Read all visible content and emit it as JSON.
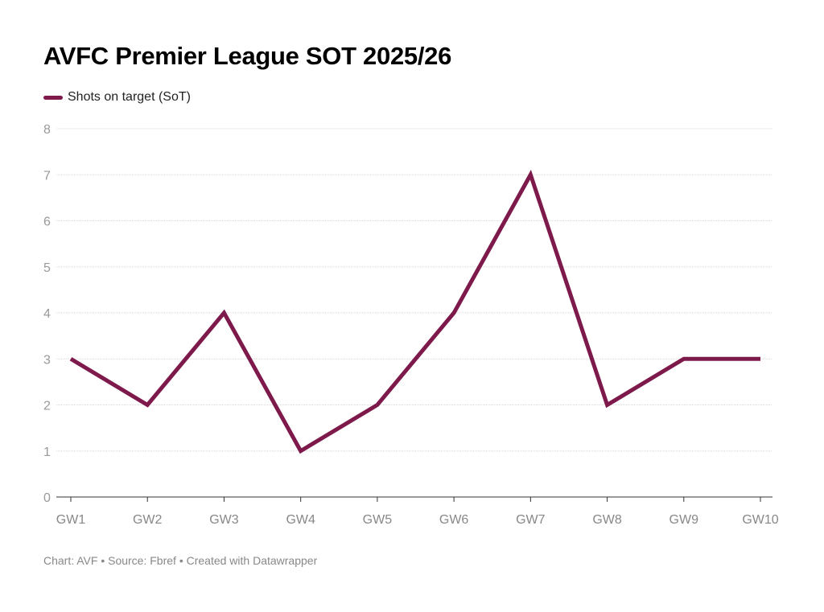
{
  "chart_data": {
    "type": "line",
    "title": "AVFC Premier League SOT 2025/26",
    "categories": [
      "GW1",
      "GW2",
      "GW3",
      "GW4",
      "GW5",
      "GW6",
      "GW7",
      "GW8",
      "GW9",
      "GW10"
    ],
    "series": [
      {
        "name": "Shots on target (SoT)",
        "values": [
          3,
          2,
          4,
          1,
          2,
          4,
          7,
          2,
          3,
          3
        ],
        "color": "#7e1a4b"
      }
    ],
    "ylim": [
      0,
      8
    ],
    "yticks": [
      0,
      1,
      2,
      3,
      4,
      5,
      6,
      7,
      8
    ],
    "grid": true,
    "legend": "top-left",
    "xlabel": "",
    "ylabel": ""
  },
  "footer": "Chart: AVF • Source: Fbref • Created with Datawrapper"
}
